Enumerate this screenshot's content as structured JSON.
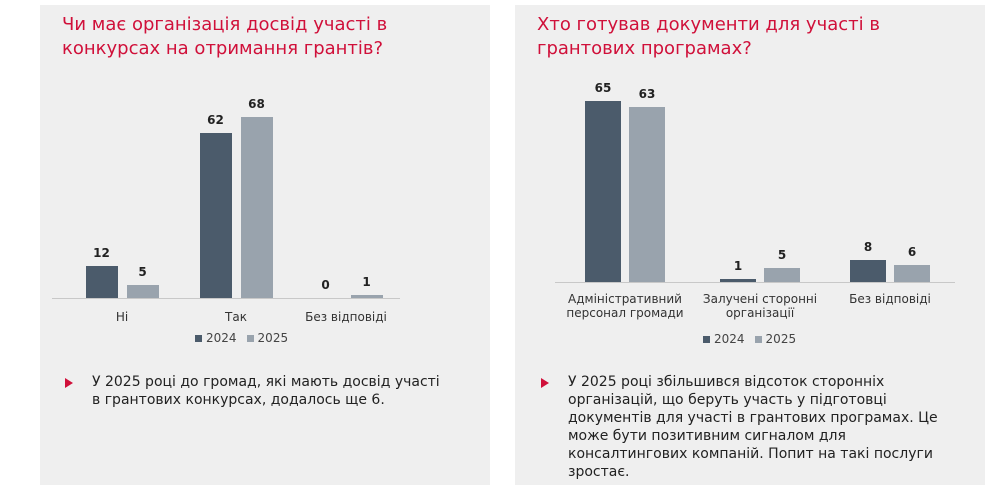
{
  "chart_data": [
    {
      "type": "bar",
      "title": "Чи має організація досвід участі в конкурсах на отримання грантів?",
      "categories": [
        "Ні",
        "Так",
        "Без відповіді"
      ],
      "series": [
        {
          "name": "2024",
          "color": "#4b5b6b",
          "values": [
            12,
            62,
            0
          ]
        },
        {
          "name": "2025",
          "color": "#99a3ad",
          "values": [
            5,
            68,
            1
          ]
        }
      ],
      "annotation": "У 2025 році до громад, які мають досвід участі в грантових конкурсах, додалось ще 6."
    },
    {
      "type": "bar",
      "title": "Хто готував документи для участі в грантових програмах?",
      "categories": [
        "Адміністративний персонал громади",
        "Залучені сторонні організації",
        "Без відповіді"
      ],
      "series": [
        {
          "name": "2024",
          "color": "#4b5b6b",
          "values": [
            65,
            1,
            8
          ]
        },
        {
          "name": "2025",
          "color": "#99a3ad",
          "values": [
            63,
            5,
            6
          ]
        }
      ],
      "annotation": "У 2025 році збільшився відсоток сторонніх організацій, що беруть участь у підготовці документів для участі в грантових програмах. Це може бути позитивним сигналом для консалтингових компаній. Попит на такі послуги зростає."
    }
  ]
}
